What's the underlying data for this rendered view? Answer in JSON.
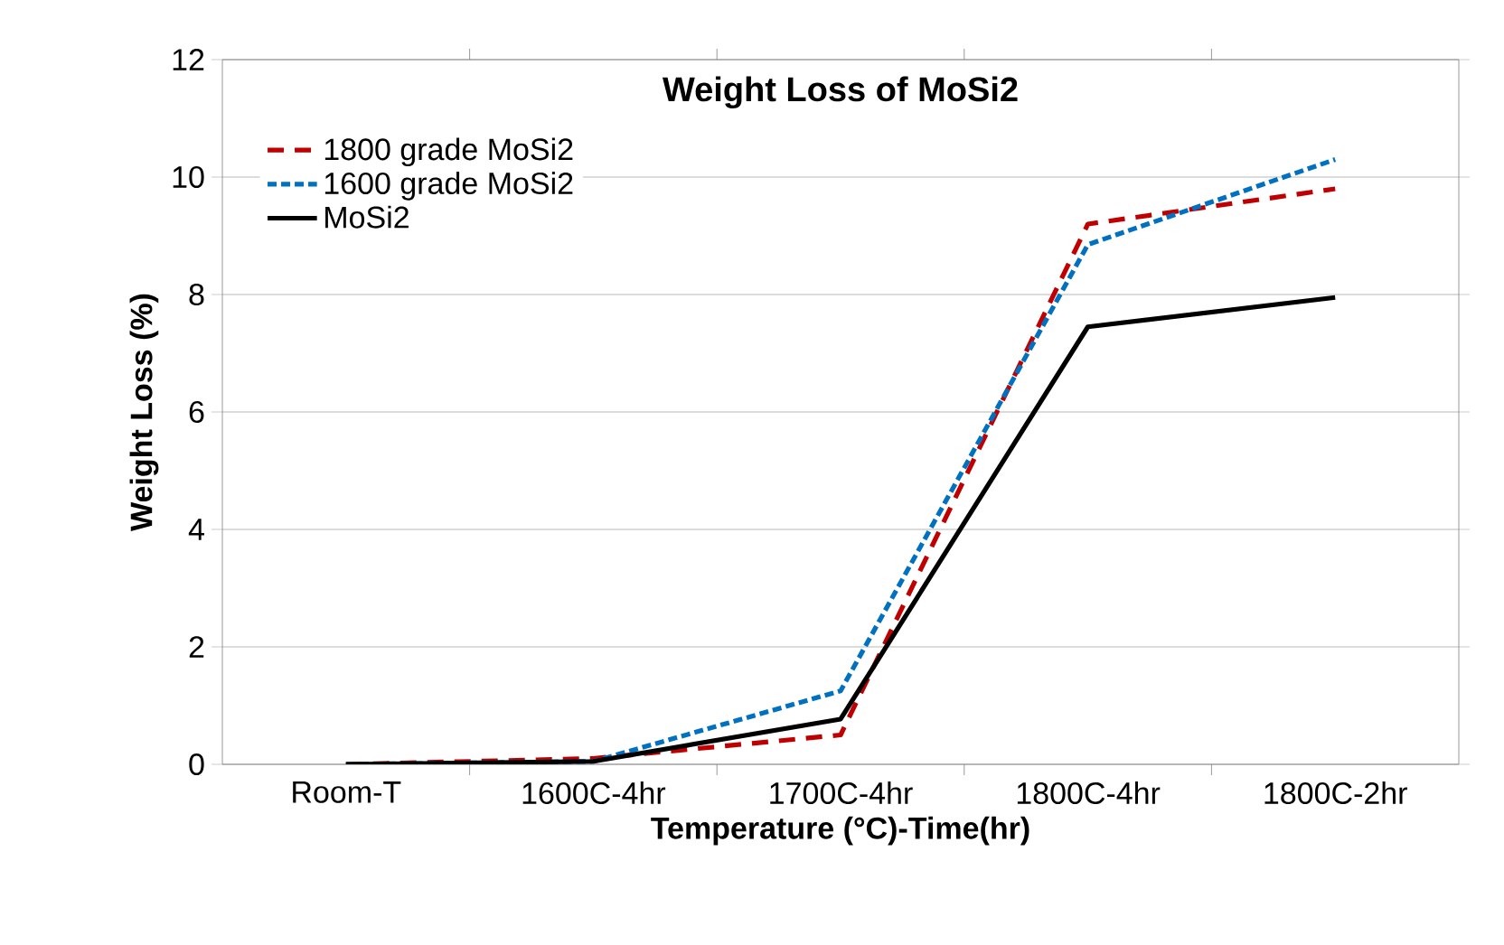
{
  "chart_data": {
    "type": "line",
    "title": "Weight Loss of MoSi2",
    "xlabel": "Temperature (°C)-Time(hr)",
    "ylabel": "Weight  Loss (%)",
    "categories": [
      "Room-T",
      "1600C-4hr",
      "1700C-4hr",
      "1800C-4hr",
      "1800C-2hr"
    ],
    "series": [
      {
        "name": "1800 grade MoSi2",
        "color": "#c00000",
        "line_style": "dashed",
        "values": [
          0,
          0.1,
          0.5,
          9.2,
          9.8
        ]
      },
      {
        "name": "1600 grade MoSi2",
        "color": "#0070c0",
        "line_style": "dotted",
        "values": [
          0,
          0.05,
          1.25,
          8.85,
          10.3
        ]
      },
      {
        "name": "MoSi2",
        "color": "#000000",
        "line_style": "solid",
        "values": [
          0,
          0.05,
          0.77,
          7.45,
          7.95
        ]
      }
    ],
    "ylim": [
      0,
      12
    ],
    "yticks": [
      0,
      2,
      4,
      6,
      8,
      10,
      12
    ],
    "grid": "y",
    "legend": "top left",
    "marker": "none"
  }
}
